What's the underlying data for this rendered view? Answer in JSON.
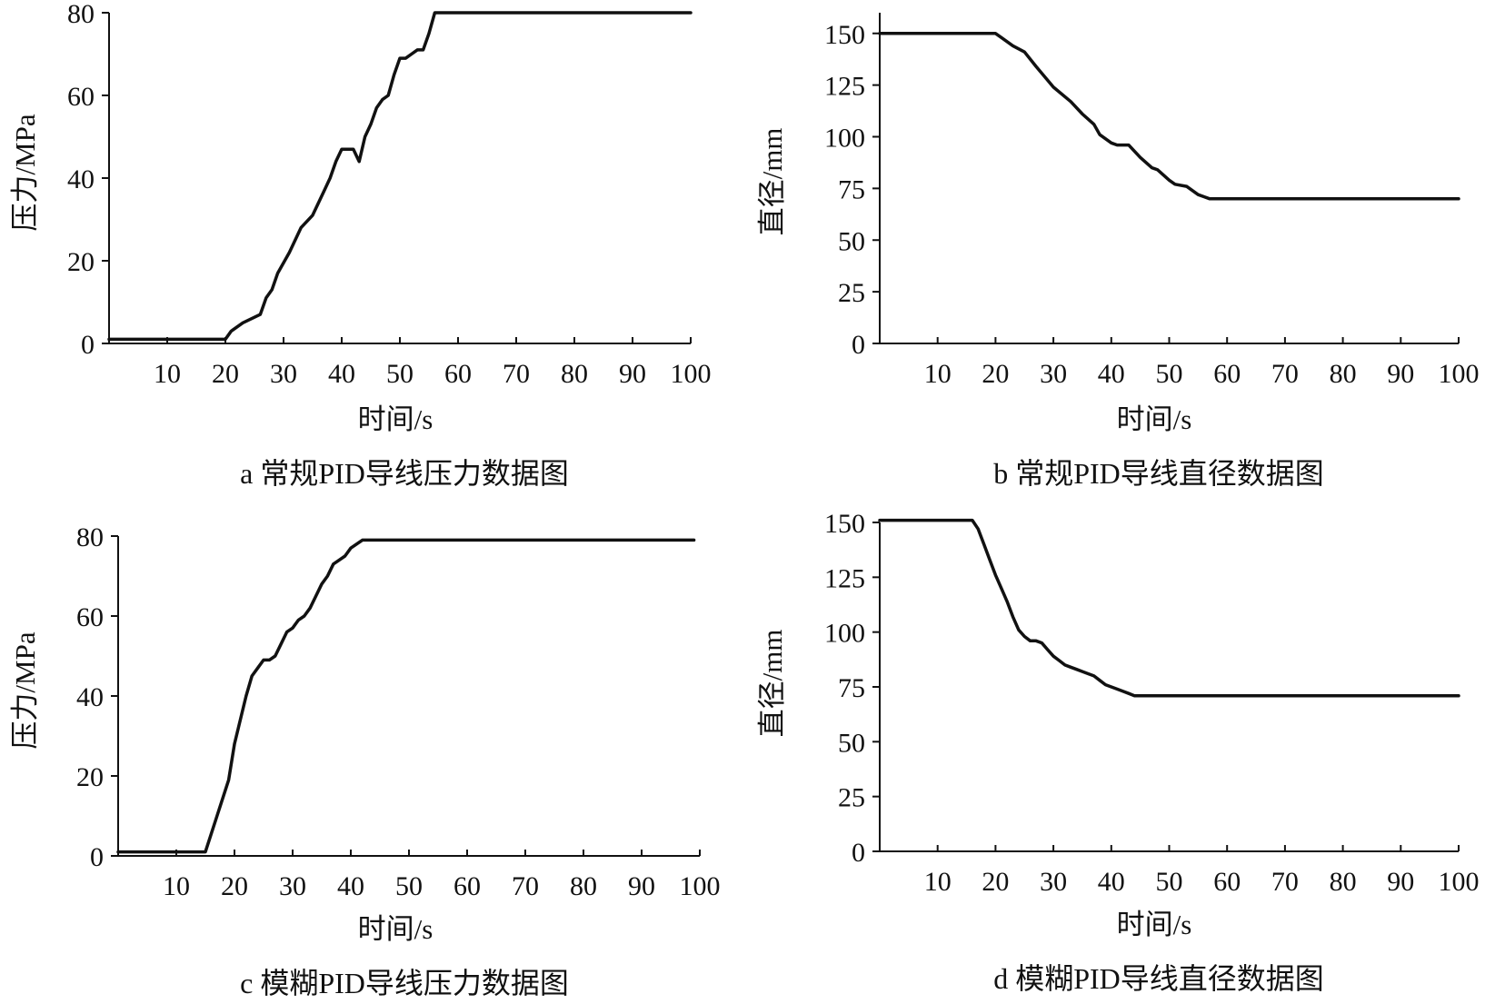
{
  "chart_data": [
    {
      "type": "line",
      "caption": "a 常规PID导线压力数据图",
      "xlabel": "时间/s",
      "ylabel": "压力/MPa",
      "xlim": [
        0,
        100
      ],
      "ylim": [
        0,
        80
      ],
      "xticks": [
        "10",
        "20",
        "30",
        "40",
        "50",
        "60",
        "70",
        "80",
        "90",
        "100"
      ],
      "yticks": [
        "0",
        "20",
        "40",
        "60",
        "80"
      ],
      "x": [
        0,
        20,
        21,
        23,
        26,
        27,
        28,
        29,
        31,
        33,
        35,
        37,
        38,
        39,
        40,
        41,
        42,
        43,
        44,
        45,
        46,
        47,
        48,
        49,
        50,
        51,
        52,
        53,
        54,
        55,
        56,
        100
      ],
      "y": [
        1,
        1,
        3,
        5,
        7,
        11,
        13,
        17,
        22,
        28,
        31,
        37,
        40,
        44,
        47,
        47,
        47,
        44,
        50,
        53,
        57,
        59,
        60,
        65,
        69,
        69,
        70,
        71,
        71,
        75,
        80,
        80
      ]
    },
    {
      "type": "line",
      "caption": "b 常规PID导线直径数据图",
      "xlabel": "时间/s",
      "ylabel": "直径/mm",
      "xlim": [
        0,
        100
      ],
      "ylim": [
        0,
        160
      ],
      "xticks": [
        "10",
        "20",
        "30",
        "40",
        "50",
        "60",
        "70",
        "80",
        "90",
        "100"
      ],
      "yticks": [
        "0",
        "25",
        "50",
        "75",
        "100",
        "125",
        "150"
      ],
      "x": [
        0,
        20,
        21,
        23,
        25,
        27,
        30,
        33,
        35,
        37,
        38,
        40,
        41,
        43,
        45,
        47,
        48,
        50,
        51,
        53,
        55,
        56,
        57,
        100
      ],
      "y": [
        150,
        150,
        148,
        144,
        141,
        134,
        124,
        117,
        111,
        106,
        101,
        97,
        96,
        96,
        90,
        85,
        84,
        79,
        77,
        76,
        72,
        71,
        70,
        70
      ]
    },
    {
      "type": "line",
      "caption": "c 模糊PID导线压力数据图",
      "xlabel": "时间/s",
      "ylabel": "压力/MPa",
      "xlim": [
        0,
        100
      ],
      "ylim": [
        0,
        80
      ],
      "xticks": [
        "10",
        "20",
        "30",
        "40",
        "50",
        "60",
        "70",
        "80",
        "90",
        "100"
      ],
      "yticks": [
        "0",
        "20",
        "40",
        "60",
        "80"
      ],
      "x": [
        0,
        15,
        17,
        19,
        20,
        21,
        22,
        23,
        24,
        25,
        26,
        27,
        28,
        29,
        30,
        31,
        32,
        33,
        34,
        35,
        36,
        37,
        38,
        39,
        40,
        41,
        42,
        43,
        99
      ],
      "y": [
        1,
        1,
        10,
        19,
        28,
        34,
        40,
        45,
        47,
        49,
        49,
        50,
        53,
        56,
        57,
        59,
        60,
        62,
        65,
        68,
        70,
        73,
        74,
        75,
        77,
        78,
        79,
        79,
        79
      ]
    },
    {
      "type": "line",
      "caption": "d 模糊PID导线直径数据图",
      "xlabel": "时间/s",
      "ylabel": "直径/mm",
      "xlim": [
        0,
        100
      ],
      "ylim": [
        0,
        150
      ],
      "xticks": [
        "10",
        "20",
        "30",
        "40",
        "50",
        "60",
        "70",
        "80",
        "90",
        "100"
      ],
      "yticks": [
        "0",
        "25",
        "50",
        "75",
        "100",
        "125",
        "150"
      ],
      "x": [
        0,
        16,
        17,
        18,
        19,
        20,
        21,
        22,
        23,
        24,
        25,
        26,
        27,
        28,
        29,
        30,
        31,
        32,
        33,
        34,
        35,
        36,
        37,
        38,
        39,
        40,
        41,
        42,
        43,
        44,
        100
      ],
      "y": [
        151,
        151,
        147,
        140,
        133,
        126,
        120,
        114,
        107,
        101,
        98,
        96,
        96,
        95,
        92,
        89,
        87,
        85,
        84,
        83,
        82,
        81,
        80,
        78,
        76,
        75,
        74,
        73,
        72,
        71,
        71
      ]
    }
  ]
}
